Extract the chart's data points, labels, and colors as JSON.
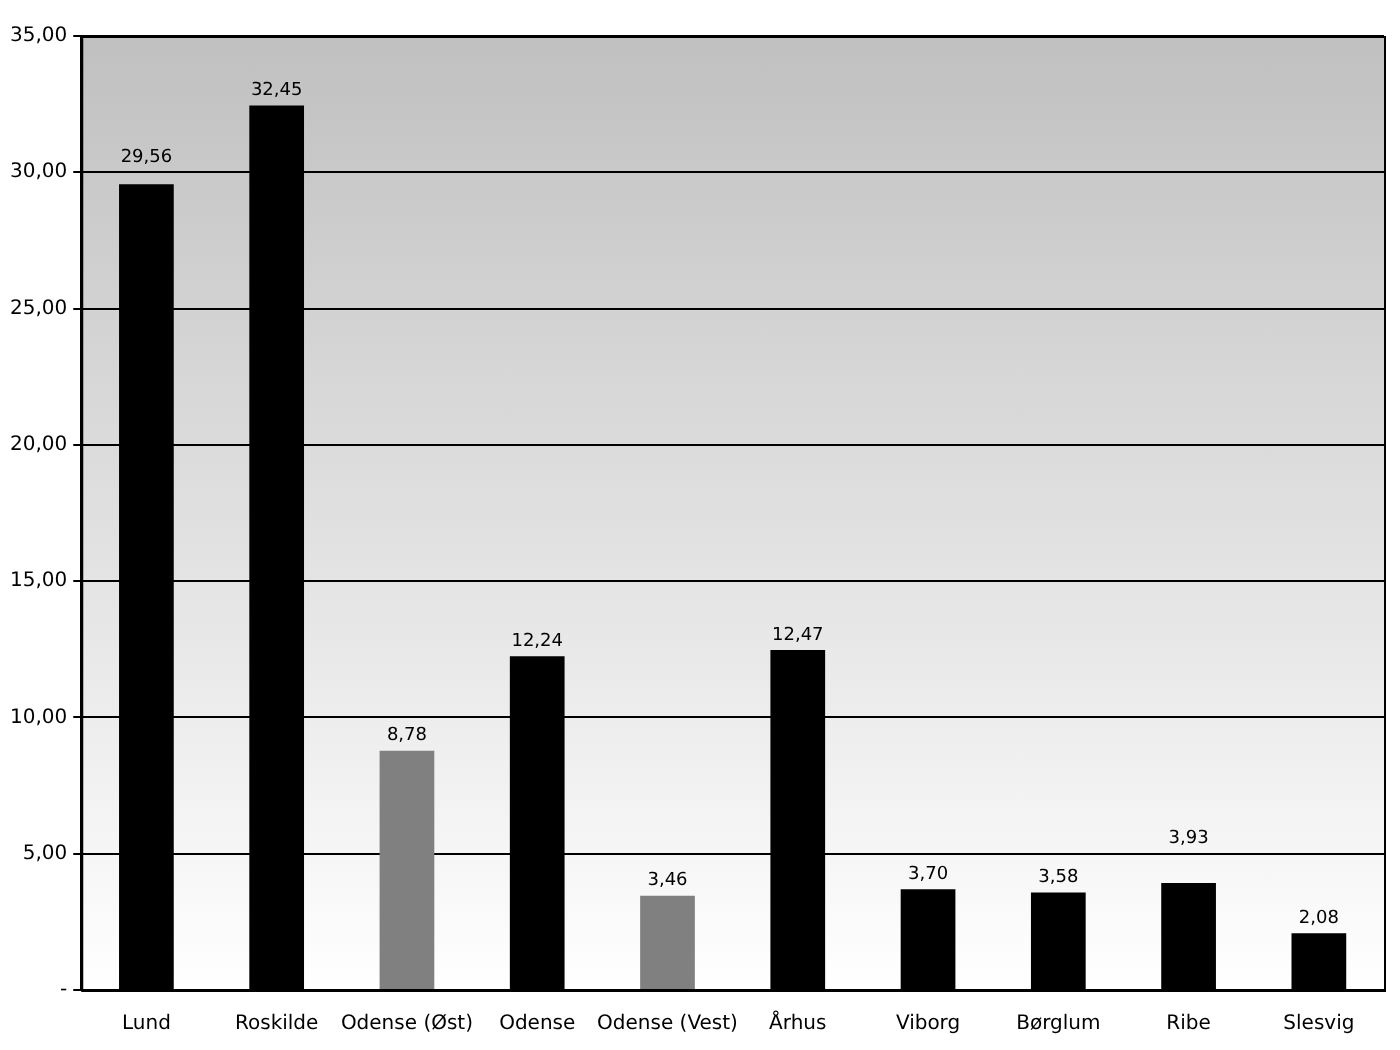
{
  "chart_data": {
    "type": "bar",
    "categories": [
      "Lund",
      "Roskilde",
      "Odense (Øst)",
      "Odense",
      "Odense (Vest)",
      "Århus",
      "Viborg",
      "Børglum",
      "Ribe",
      "Slesvig"
    ],
    "values": [
      29.56,
      32.45,
      8.78,
      12.24,
      3.46,
      12.47,
      3.7,
      3.58,
      3.93,
      2.08
    ],
    "colors": [
      "#000000",
      "#000000",
      "#808080",
      "#000000",
      "#808080",
      "#000000",
      "#000000",
      "#000000",
      "#000000",
      "#000000"
    ],
    "value_labels": [
      "29,56",
      "32,45",
      "8,78",
      "12,24",
      "3,46",
      "12,47",
      "3,70",
      "3,58",
      "3,93",
      "2,08"
    ],
    "ylim": [
      0,
      35
    ],
    "yticks": [
      {
        "value": 0,
        "label": "-"
      },
      {
        "value": 5,
        "label": "5,00"
      },
      {
        "value": 10,
        "label": "10,00"
      },
      {
        "value": 15,
        "label": "15,00"
      },
      {
        "value": 20,
        "label": "20,00"
      },
      {
        "value": 25,
        "label": "25,00"
      },
      {
        "value": 30,
        "label": "30,00"
      },
      {
        "value": 35,
        "label": "35,00"
      }
    ],
    "grid": "y",
    "legend": false
  }
}
